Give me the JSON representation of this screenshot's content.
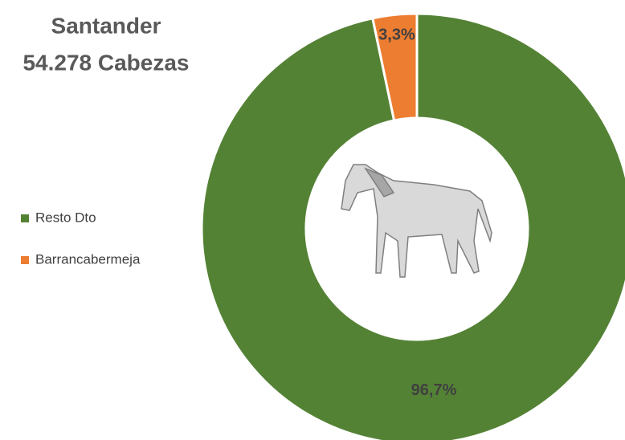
{
  "chart_data": {
    "type": "pie",
    "donut": true,
    "title": "Santander",
    "subtitle": "54.278 Cabezas",
    "categories": [
      "Resto Dto",
      "Barrancabermeja"
    ],
    "values": [
      96.7,
      3.3
    ],
    "value_labels": [
      "96,7%",
      "3,3%"
    ],
    "colors": [
      "#548235",
      "#ed7d31"
    ],
    "legend": "left"
  }
}
